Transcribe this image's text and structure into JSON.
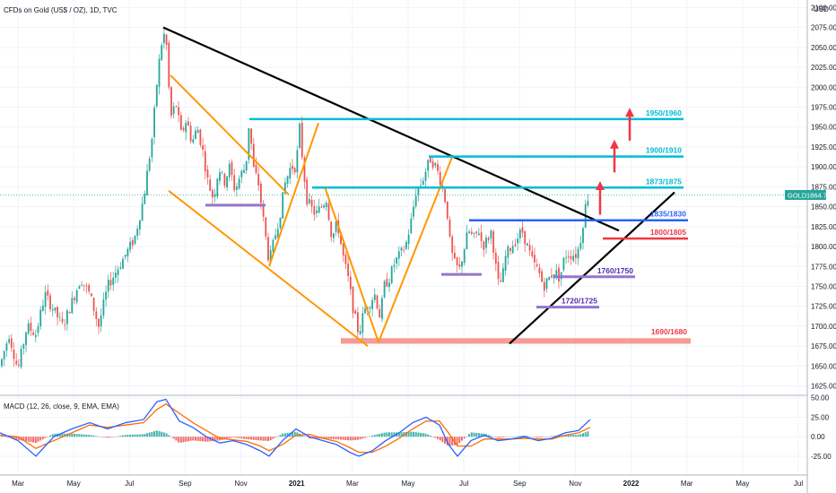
{
  "header": {
    "title": "CFDs on Gold (US$ / OZ), 1D, TVC",
    "currency": "USD"
  },
  "price_badge": {
    "symbol": "GOLD",
    "value": "1864.74"
  },
  "macd_header": "MACD (12, 26, close, 9, EMA, EMA)",
  "colors": {
    "up": "#26a69a",
    "down": "#ef5350",
    "trendline": "#000000",
    "channel": "#ff9800",
    "cyan_level": "#00bcd4",
    "blue_level": "#2962ff",
    "red_level": "#f23645",
    "purple_level": "#9575cd",
    "support_zone": "#f28b82",
    "macd_line": "#2962ff",
    "signal_line": "#ff6d00"
  },
  "chart_data": {
    "type": "candlestick",
    "x_ticks": [
      "Mar",
      "May",
      "Jul",
      "Sep",
      "Nov",
      "2021",
      "Mar",
      "May",
      "Jul",
      "Sep",
      "Nov",
      "2022",
      "Mar",
      "May",
      "Jul"
    ],
    "y_ticks": [
      "2100.00",
      "2075.00",
      "2050.00",
      "2025.00",
      "2000.00",
      "1975.00",
      "1950.00",
      "1925.00",
      "1900.00",
      "1875.00",
      "1850.00",
      "1825.00",
      "1800.00",
      "1775.00",
      "1750.00",
      "1725.00",
      "1700.00",
      "1675.00",
      "1650.00",
      "1625.00"
    ],
    "ylim": [
      1620,
      2105
    ],
    "macd_ticks": [
      "50.00",
      "25.00",
      "0.00",
      "-25.00"
    ],
    "macd_ylim": [
      -40,
      52
    ],
    "last_price": 1864.74,
    "price_path": [
      [
        0,
        1650
      ],
      [
        10,
        1690
      ],
      [
        20,
        1645
      ],
      [
        30,
        1700
      ],
      [
        40,
        1690
      ],
      [
        50,
        1740
      ],
      [
        60,
        1720
      ],
      [
        70,
        1700
      ],
      [
        80,
        1730
      ],
      [
        90,
        1760
      ],
      [
        100,
        1740
      ],
      [
        110,
        1700
      ],
      [
        120,
        1750
      ],
      [
        130,
        1770
      ],
      [
        140,
        1790
      ],
      [
        150,
        1810
      ],
      [
        160,
        1860
      ],
      [
        170,
        1940
      ],
      [
        176,
        2020
      ],
      [
        182,
        2070
      ],
      [
        186,
        2050
      ],
      [
        190,
        1960
      ],
      [
        196,
        1980
      ],
      [
        202,
        1940
      ],
      [
        208,
        1960
      ],
      [
        214,
        1930
      ],
      [
        220,
        1950
      ],
      [
        226,
        1920
      ],
      [
        232,
        1880
      ],
      [
        238,
        1860
      ],
      [
        244,
        1900
      ],
      [
        250,
        1880
      ],
      [
        256,
        1900
      ],
      [
        262,
        1870
      ],
      [
        268,
        1890
      ],
      [
        274,
        1900
      ],
      [
        278,
        1960
      ],
      [
        282,
        1900
      ],
      [
        288,
        1880
      ],
      [
        294,
        1830
      ],
      [
        300,
        1780
      ],
      [
        306,
        1810
      ],
      [
        312,
        1840
      ],
      [
        318,
        1880
      ],
      [
        324,
        1900
      ],
      [
        330,
        1900
      ],
      [
        334,
        1950
      ],
      [
        338,
        1900
      ],
      [
        342,
        1860
      ],
      [
        346,
        1850
      ],
      [
        352,
        1840
      ],
      [
        358,
        1850
      ],
      [
        364,
        1860
      ],
      [
        370,
        1810
      ],
      [
        376,
        1830
      ],
      [
        382,
        1790
      ],
      [
        388,
        1760
      ],
      [
        394,
        1720
      ],
      [
        400,
        1690
      ],
      [
        406,
        1720
      ],
      [
        412,
        1730
      ],
      [
        418,
        1740
      ],
      [
        424,
        1710
      ],
      [
        428,
        1750
      ],
      [
        434,
        1760
      ],
      [
        440,
        1780
      ],
      [
        446,
        1790
      ],
      [
        452,
        1800
      ],
      [
        458,
        1830
      ],
      [
        464,
        1870
      ],
      [
        470,
        1880
      ],
      [
        476,
        1900
      ],
      [
        480,
        1910
      ],
      [
        486,
        1900
      ],
      [
        492,
        1880
      ],
      [
        498,
        1850
      ],
      [
        502,
        1800
      ],
      [
        506,
        1780
      ],
      [
        512,
        1770
      ],
      [
        518,
        1800
      ],
      [
        522,
        1820
      ],
      [
        528,
        1810
      ],
      [
        534,
        1820
      ],
      [
        538,
        1800
      ],
      [
        544,
        1810
      ],
      [
        548,
        1820
      ],
      [
        552,
        1780
      ],
      [
        556,
        1750
      ],
      [
        560,
        1760
      ],
      [
        564,
        1790
      ],
      [
        570,
        1800
      ],
      [
        576,
        1810
      ],
      [
        582,
        1820
      ],
      [
        588,
        1800
      ],
      [
        594,
        1780
      ],
      [
        600,
        1770
      ],
      [
        606,
        1750
      ],
      [
        612,
        1760
      ],
      [
        618,
        1770
      ],
      [
        624,
        1760
      ],
      [
        630,
        1790
      ],
      [
        636,
        1790
      ],
      [
        642,
        1790
      ],
      [
        646,
        1800
      ],
      [
        650,
        1830
      ],
      [
        654,
        1860
      ],
      [
        658,
        1865
      ]
    ],
    "macd_line": [
      [
        0,
        5
      ],
      [
        20,
        -5
      ],
      [
        40,
        -25
      ],
      [
        60,
        0
      ],
      [
        80,
        10
      ],
      [
        100,
        18
      ],
      [
        120,
        10
      ],
      [
        140,
        18
      ],
      [
        160,
        22
      ],
      [
        175,
        45
      ],
      [
        185,
        48
      ],
      [
        200,
        20
      ],
      [
        215,
        12
      ],
      [
        230,
        0
      ],
      [
        245,
        -8
      ],
      [
        260,
        -5
      ],
      [
        275,
        -10
      ],
      [
        290,
        -18
      ],
      [
        300,
        -25
      ],
      [
        315,
        -5
      ],
      [
        330,
        10
      ],
      [
        345,
        0
      ],
      [
        360,
        -5
      ],
      [
        375,
        -10
      ],
      [
        390,
        -20
      ],
      [
        400,
        -25
      ],
      [
        415,
        -18
      ],
      [
        430,
        -5
      ],
      [
        445,
        5
      ],
      [
        460,
        18
      ],
      [
        475,
        25
      ],
      [
        490,
        15
      ],
      [
        500,
        -10
      ],
      [
        510,
        -25
      ],
      [
        525,
        -5
      ],
      [
        540,
        2
      ],
      [
        555,
        -5
      ],
      [
        570,
        -3
      ],
      [
        585,
        0
      ],
      [
        600,
        -5
      ],
      [
        615,
        -2
      ],
      [
        630,
        5
      ],
      [
        645,
        8
      ],
      [
        658,
        22
      ]
    ],
    "signal_line": [
      [
        0,
        2
      ],
      [
        20,
        0
      ],
      [
        40,
        -15
      ],
      [
        60,
        -5
      ],
      [
        80,
        5
      ],
      [
        100,
        15
      ],
      [
        120,
        12
      ],
      [
        140,
        15
      ],
      [
        160,
        18
      ],
      [
        175,
        35
      ],
      [
        185,
        42
      ],
      [
        200,
        30
      ],
      [
        215,
        18
      ],
      [
        230,
        8
      ],
      [
        245,
        -2
      ],
      [
        260,
        -4
      ],
      [
        275,
        -6
      ],
      [
        290,
        -12
      ],
      [
        300,
        -18
      ],
      [
        315,
        -10
      ],
      [
        330,
        2
      ],
      [
        345,
        3
      ],
      [
        360,
        -2
      ],
      [
        375,
        -6
      ],
      [
        390,
        -14
      ],
      [
        400,
        -20
      ],
      [
        415,
        -20
      ],
      [
        430,
        -12
      ],
      [
        445,
        -2
      ],
      [
        460,
        10
      ],
      [
        475,
        20
      ],
      [
        490,
        20
      ],
      [
        500,
        5
      ],
      [
        510,
        -12
      ],
      [
        525,
        -12
      ],
      [
        540,
        -3
      ],
      [
        555,
        -3
      ],
      [
        570,
        -3
      ],
      [
        585,
        -2
      ],
      [
        600,
        -3
      ],
      [
        615,
        -3
      ],
      [
        630,
        2
      ],
      [
        645,
        5
      ],
      [
        658,
        12
      ]
    ],
    "levels": [
      {
        "label": "1950/1960",
        "price": 1960,
        "color_key": "cyan_level",
        "x1": 278,
        "x2": 762
      },
      {
        "label": "1900/1910",
        "price": 1913,
        "color_key": "cyan_level",
        "x1": 478,
        "x2": 762
      },
      {
        "label": "1873/1875",
        "price": 1874,
        "color_key": "cyan_level",
        "x1": 348,
        "x2": 762
      },
      {
        "label": "1835/1830",
        "price": 1833,
        "color_key": "blue_level",
        "x1": 523,
        "x2": 767
      },
      {
        "label": "1800/1805",
        "price": 1810,
        "color_key": "red_level",
        "x1": 672,
        "x2": 767
      },
      {
        "label": "1760/1750",
        "price": 1762,
        "color_key": "purple_level",
        "x1": 618,
        "x2": 708
      },
      {
        "label": "1720/1725",
        "price": 1724,
        "color_key": "purple_level",
        "x1": 598,
        "x2": 668
      }
    ],
    "zones": [
      {
        "label": "1690/1680",
        "price_top": 1685,
        "price_bottom": 1678,
        "x1": 380,
        "x2": 770
      }
    ],
    "trendlines": [
      {
        "kind": "trendline",
        "points": [
          [
            182,
            2075
          ],
          [
            690,
            1820
          ]
        ]
      },
      {
        "kind": "trendline",
        "points": [
          [
            568,
            1678
          ],
          [
            752,
            1868
          ]
        ]
      },
      {
        "kind": "channel",
        "points": [
          [
            190,
            2015
          ],
          [
            322,
            1865
          ]
        ]
      },
      {
        "kind": "channel",
        "points": [
          [
            188,
            1870
          ],
          [
            410,
            1675
          ]
        ]
      },
      {
        "kind": "channel",
        "points": [
          [
            300,
            1775
          ],
          [
            355,
            1955
          ]
        ]
      },
      {
        "kind": "channel",
        "points": [
          [
            362,
            1875
          ],
          [
            422,
            1680
          ]
        ]
      },
      {
        "kind": "channel",
        "points": [
          [
            422,
            1680
          ],
          [
            505,
            1915
          ]
        ]
      }
    ],
    "small_bars": [
      {
        "price": 1852,
        "x1": 229,
        "x2": 296
      },
      {
        "price": 1765,
        "x1": 492,
        "x2": 537
      }
    ],
    "arrows": [
      {
        "x": 669,
        "from": 1840,
        "to": 1880
      },
      {
        "x": 685,
        "from": 1893,
        "to": 1932
      },
      {
        "x": 702,
        "from": 1933,
        "to": 1972
      }
    ]
  }
}
